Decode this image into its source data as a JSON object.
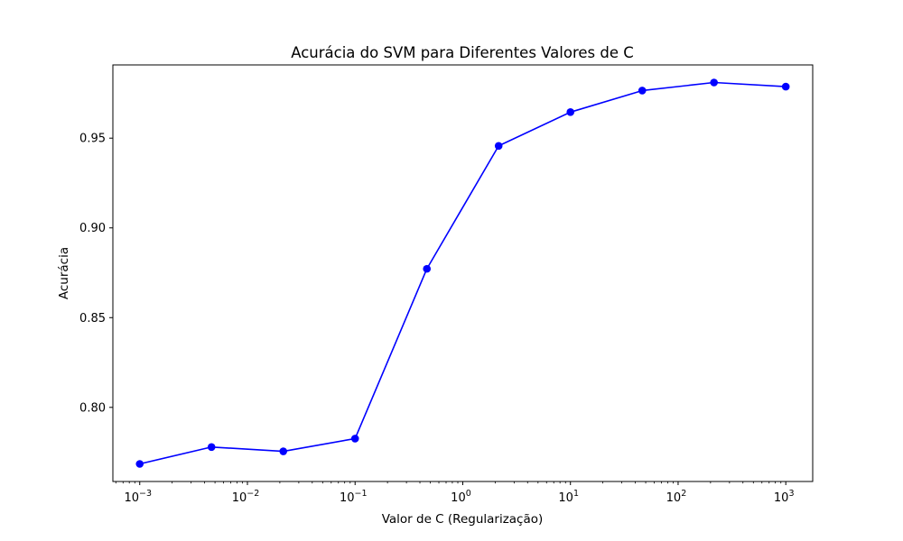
{
  "chart_data": {
    "type": "line",
    "title": "Acurácia do SVM para Diferentes Valores de C",
    "xlabel": "Valor de C (Regularização)",
    "ylabel": "Acurácia",
    "x_scale": "log",
    "xlim": [
      0.000563,
      1778
    ],
    "ylim": [
      0.7587,
      0.9908
    ],
    "grid": false,
    "x_ticks": [
      {
        "value": 0.001,
        "base": "10",
        "exp": "−3"
      },
      {
        "value": 0.01,
        "base": "10",
        "exp": "−2"
      },
      {
        "value": 0.1,
        "base": "10",
        "exp": "−1"
      },
      {
        "value": 1,
        "base": "10",
        "exp": "0"
      },
      {
        "value": 10,
        "base": "10",
        "exp": "1"
      },
      {
        "value": 100,
        "base": "10",
        "exp": "2"
      },
      {
        "value": 1000,
        "base": "10",
        "exp": "3"
      }
    ],
    "y_ticks": [
      {
        "value": 0.8,
        "label": "0.80"
      },
      {
        "value": 0.85,
        "label": "0.85"
      },
      {
        "value": 0.9,
        "label": "0.90"
      },
      {
        "value": 0.95,
        "label": "0.95"
      }
    ],
    "series": [
      {
        "color": "#0000ff",
        "marker": "circle",
        "x": [
          0.001,
          0.00464,
          0.02154,
          0.1,
          0.4642,
          2.154,
          10,
          46.42,
          215.4,
          1000
        ],
        "y": [
          0.7685,
          0.7779,
          0.7755,
          0.7826,
          0.8772,
          0.9457,
          0.9645,
          0.9765,
          0.981,
          0.9787
        ]
      }
    ]
  }
}
